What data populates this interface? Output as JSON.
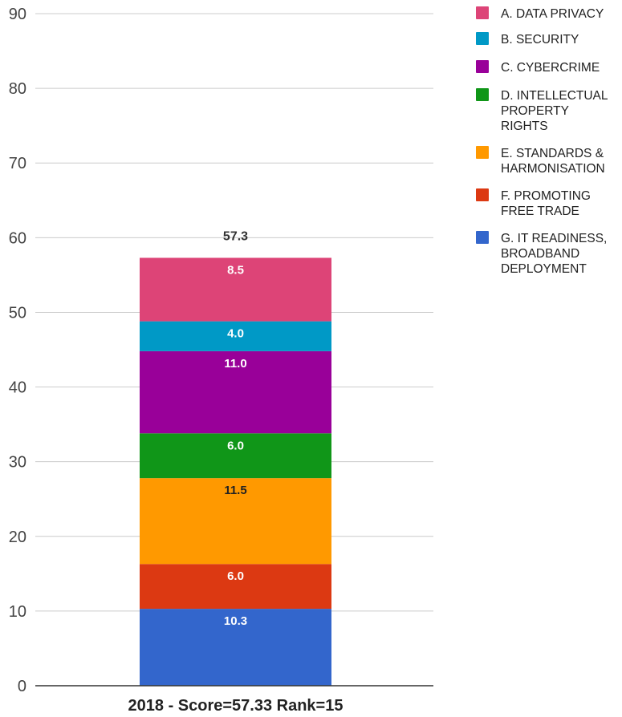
{
  "chart_data": {
    "type": "bar",
    "stacked": true,
    "categories": [
      "2018 - Score=57.33 Rank=15"
    ],
    "series": [
      {
        "name": "G. IT READINESS, BROADBAND DEPLOYMENT",
        "values": [
          10.3
        ],
        "color": "#3366cc",
        "label_color": "#ffffff"
      },
      {
        "name": "F. PROMOTING FREE TRADE",
        "values": [
          6.0
        ],
        "color": "#dc3912",
        "label_color": "#ffffff"
      },
      {
        "name": "E. STANDARDS & HARMONISATION",
        "values": [
          11.5
        ],
        "color": "#ff9900",
        "label_color": "#222222"
      },
      {
        "name": "D. INTELLECTUAL PROPERTY RIGHTS",
        "values": [
          6.0
        ],
        "color": "#109618",
        "label_color": "#ffffff"
      },
      {
        "name": "C. CYBERCRIME",
        "values": [
          11.0
        ],
        "color": "#990099",
        "label_color": "#ffffff"
      },
      {
        "name": "B. SECURITY",
        "values": [
          4.0
        ],
        "color": "#0099c6",
        "label_color": "#ffffff"
      },
      {
        "name": "A. DATA PRIVACY",
        "values": [
          8.5
        ],
        "color": "#dd4477",
        "label_color": "#ffffff"
      }
    ],
    "data_labels": [
      "10.3",
      "6.0",
      "11.5",
      "6.0",
      "11.0",
      "4.0",
      "8.5"
    ],
    "total_label": "57.3",
    "ylim": [
      0,
      90
    ],
    "yticks": [
      0,
      10,
      20,
      30,
      40,
      50,
      60,
      70,
      80,
      90
    ],
    "grid": true,
    "legend": {
      "position": "top-right",
      "entries": [
        {
          "lines": [
            "A. DATA PRIVACY"
          ],
          "color": "#dd4477"
        },
        {
          "lines": [
            "B. SECURITY"
          ],
          "color": "#0099c6"
        },
        {
          "lines": [
            "C. CYBERCRIME"
          ],
          "color": "#990099"
        },
        {
          "lines": [
            "D. INTELLECTUAL",
            "PROPERTY",
            "RIGHTS"
          ],
          "color": "#109618"
        },
        {
          "lines": [
            "E. STANDARDS &",
            "HARMONISATION"
          ],
          "color": "#ff9900"
        },
        {
          "lines": [
            "F. PROMOTING",
            "FREE TRADE"
          ],
          "color": "#dc3912"
        },
        {
          "lines": [
            "G. IT READINESS,",
            "BROADBAND",
            "DEPLOYMENT"
          ],
          "color": "#3366cc"
        }
      ]
    }
  }
}
